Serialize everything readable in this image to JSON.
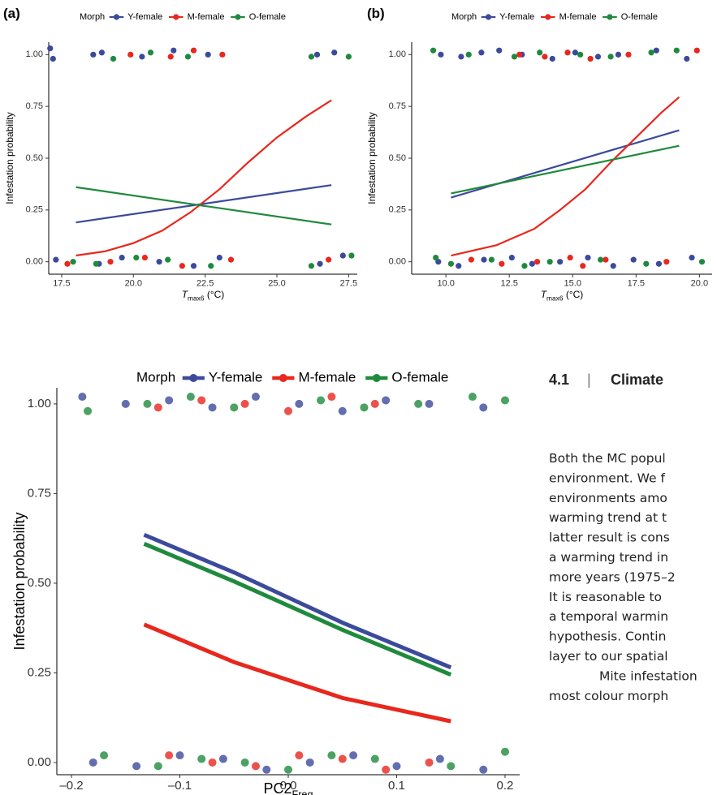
{
  "chart_data": [
    {
      "type": "scatter",
      "panel_label": "(a)",
      "legend_title": "Morph",
      "xlabel": {
        "text": "T",
        "sub": "max6",
        "suffix": " (°C)"
      },
      "ylabel": "Infestation probability",
      "xlim": [
        17.05,
        27.8
      ],
      "ylim": [
        -0.06,
        1.06
      ],
      "grid": false,
      "xticks": [
        17.5,
        {
          "value": 20,
          "label": "20.0"
        },
        22.5,
        {
          "value": 25,
          "label": "25.0"
        },
        27.5
      ],
      "yticks": [
        {
          "value": 0,
          "label": "0.00"
        },
        {
          "value": 0.25,
          "label": "0.25"
        },
        {
          "value": 0.5,
          "label": "0.50"
        },
        {
          "value": 0.75,
          "label": "0.75"
        },
        {
          "value": 1,
          "label": "1.00"
        }
      ],
      "series": [
        {
          "name": "Y-female",
          "color": "#3b4a9b",
          "points": {
            "x": [
              17.1,
              17.2,
              18.6,
              18.9,
              20.3,
              21.4,
              22.6,
              26.4,
              27.0,
              17.3,
              18.8,
              19.6,
              20.9,
              22.1,
              23.0,
              26.5,
              27.3
            ],
            "y": [
              1.03,
              0.98,
              1.0,
              1.01,
              0.99,
              1.02,
              1.0,
              1.0,
              1.01,
              0.01,
              -0.01,
              0.02,
              0.0,
              -0.02,
              0.02,
              -0.01,
              0.03
            ]
          },
          "fit": {
            "x": [
              18,
              26.9
            ],
            "y": [
              0.19,
              0.37
            ]
          }
        },
        {
          "name": "M-female",
          "color": "#e8271d",
          "points": {
            "x": [
              19.9,
              21.3,
              22.1,
              23.1,
              17.7,
              19.2,
              20.4,
              21.7,
              23.4,
              26.8
            ],
            "y": [
              1.0,
              0.99,
              1.02,
              1.0,
              -0.01,
              0.0,
              0.02,
              -0.02,
              0.01,
              0.01
            ]
          },
          "fit": {
            "x": [
              18,
              19,
              20,
              21,
              22,
              23,
              24,
              25,
              26,
              26.9
            ],
            "y": [
              0.03,
              0.05,
              0.09,
              0.15,
              0.24,
              0.35,
              0.48,
              0.6,
              0.7,
              0.78
            ]
          }
        },
        {
          "name": "O-female",
          "color": "#1f8a3d",
          "points": {
            "x": [
              19.3,
              20.6,
              21.9,
              26.2,
              27.5,
              17.9,
              18.7,
              20.1,
              21.2,
              22.7,
              26.2,
              27.6
            ],
            "y": [
              0.98,
              1.01,
              0.99,
              0.99,
              0.99,
              0.0,
              -0.01,
              0.02,
              0.01,
              -0.02,
              -0.02,
              0.03
            ]
          },
          "fit": {
            "x": [
              18,
              26.9
            ],
            "y": [
              0.36,
              0.18
            ]
          }
        }
      ]
    },
    {
      "type": "scatter",
      "panel_label": "(b)",
      "legend_title": "Morph",
      "xlabel": {
        "text": "T",
        "sub": "max6",
        "suffix": " (°C)"
      },
      "ylabel": "Infestation probability",
      "xlim": [
        8.65,
        20.5
      ],
      "ylim": [
        -0.06,
        1.06
      ],
      "grid": false,
      "xticks": [
        {
          "value": 10,
          "label": "10.0"
        },
        12.5,
        {
          "value": 15,
          "label": "15.0"
        },
        17.5,
        {
          "value": 20,
          "label": "20.0"
        }
      ],
      "yticks": [
        {
          "value": 0,
          "label": "0.00"
        },
        {
          "value": 0.25,
          "label": "0.25"
        },
        {
          "value": 0.5,
          "label": "0.50"
        },
        {
          "value": 0.75,
          "label": "0.75"
        },
        {
          "value": 1,
          "label": "1.00"
        }
      ],
      "series": [
        {
          "name": "Y-female",
          "color": "#3b4a9b",
          "points": {
            "x": [
              9.8,
              10.6,
              11.4,
              12.1,
              13.0,
              14.2,
              15.1,
              16.0,
              16.8,
              18.3,
              19.5,
              9.7,
              10.5,
              11.5,
              12.6,
              13.4,
              14.5,
              15.6,
              16.6,
              17.4,
              18.4,
              19.7
            ],
            "y": [
              1.0,
              0.99,
              1.01,
              1.02,
              1.0,
              0.98,
              1.01,
              0.99,
              1.0,
              1.02,
              0.98,
              0.0,
              -0.02,
              0.01,
              0.02,
              -0.01,
              0.0,
              0.02,
              -0.02,
              0.01,
              -0.01,
              0.02
            ]
          },
          "fit": {
            "x": [
              10.2,
              19.2
            ],
            "y": [
              0.31,
              0.635
            ]
          }
        },
        {
          "name": "M-female",
          "color": "#e8271d",
          "points": {
            "x": [
              12.9,
              13.9,
              14.8,
              15.7,
              17.2,
              19.9,
              11.0,
              12.2,
              13.6,
              14.9,
              15.4,
              16.3,
              18.7
            ],
            "y": [
              1.0,
              0.99,
              1.01,
              0.98,
              1.0,
              1.02,
              0.01,
              -0.01,
              0.0,
              0.02,
              -0.02,
              0.01,
              0.0
            ]
          },
          "fit": {
            "x": [
              10.2,
              12,
              13.5,
              14.5,
              15.5,
              16.5,
              17.5,
              18.5,
              19.2
            ],
            "y": [
              0.03,
              0.08,
              0.16,
              0.25,
              0.35,
              0.48,
              0.6,
              0.72,
              0.795
            ]
          }
        },
        {
          "name": "O-female",
          "color": "#1f8a3d",
          "points": {
            "x": [
              9.5,
              10.9,
              12.7,
              13.7,
              15.3,
              16.5,
              18.1,
              19.1,
              9.6,
              10.2,
              11.8,
              13.1,
              14.1,
              16.1,
              17.9,
              20.1
            ],
            "y": [
              1.02,
              1.0,
              0.99,
              1.01,
              1.0,
              0.99,
              1.01,
              1.02,
              0.02,
              -0.01,
              0.01,
              -0.02,
              0.0,
              0.01,
              -0.01,
              0.0
            ]
          },
          "fit": {
            "x": [
              10.2,
              19.2
            ],
            "y": [
              0.33,
              0.56
            ]
          }
        }
      ]
    },
    {
      "type": "scatter",
      "legend_title": "Morph",
      "xlabel": {
        "text": "PC2",
        "sub": "Freq",
        "suffix": ""
      },
      "ylabel": "Infestation probability",
      "xlim": [
        -0.2135,
        0.2135
      ],
      "ylim": [
        -0.034,
        1.045
      ],
      "grid": false,
      "xticks": [
        {
          "value": -0.2,
          "label": "–0.2"
        },
        {
          "value": -0.1,
          "label": "–0.1"
        },
        {
          "value": 0,
          "label": "0.0"
        },
        0.1,
        0.2
      ],
      "yticks": [
        {
          "value": 0,
          "label": "0.00"
        },
        {
          "value": 0.25,
          "label": "0.25"
        },
        {
          "value": 0.5,
          "label": "0.50"
        },
        {
          "value": 0.75,
          "label": "0.75"
        },
        {
          "value": 1,
          "label": "1.00"
        }
      ],
      "series": [
        {
          "name": "Y-female",
          "color": "#3b4a9b",
          "points": {
            "x": [
              -0.19,
              -0.15,
              -0.11,
              -0.07,
              -0.03,
              0.01,
              0.05,
              0.09,
              0.13,
              0.18,
              -0.18,
              -0.14,
              -0.1,
              -0.06,
              -0.02,
              0.02,
              0.06,
              0.1,
              0.14,
              0.18
            ],
            "y": [
              1.02,
              1.0,
              1.01,
              0.99,
              1.02,
              1.0,
              0.98,
              1.01,
              1.0,
              0.99,
              0.0,
              -0.01,
              0.02,
              0.01,
              -0.02,
              0.0,
              0.02,
              -0.01,
              0.01,
              -0.02
            ]
          },
          "fit": {
            "x": [
              -0.133,
              -0.05,
              0.05,
              0.15
            ],
            "y": [
              0.635,
              0.53,
              0.39,
              0.265
            ]
          }
        },
        {
          "name": "M-female",
          "color": "#e8271d",
          "points": {
            "x": [
              -0.12,
              -0.08,
              -0.04,
              0.0,
              0.04,
              0.08,
              -0.11,
              -0.07,
              -0.03,
              0.01,
              0.05,
              0.09,
              0.13
            ],
            "y": [
              0.99,
              1.01,
              1.0,
              0.98,
              1.02,
              1.0,
              0.02,
              0.0,
              -0.01,
              0.02,
              0.01,
              -0.02,
              0.0
            ]
          },
          "fit": {
            "x": [
              -0.133,
              -0.05,
              0.05,
              0.15
            ],
            "y": [
              0.385,
              0.28,
              0.18,
              0.115
            ]
          }
        },
        {
          "name": "O-female",
          "color": "#1f8a3d",
          "points": {
            "x": [
              -0.185,
              -0.13,
              -0.09,
              -0.05,
              0.03,
              0.07,
              0.12,
              0.17,
              0.2,
              -0.17,
              -0.12,
              -0.08,
              -0.04,
              0.0,
              0.04,
              0.08,
              0.15,
              0.2
            ],
            "y": [
              0.98,
              1.0,
              1.02,
              0.99,
              1.01,
              0.99,
              1.0,
              1.02,
              1.01,
              0.02,
              -0.01,
              0.01,
              0.0,
              -0.02,
              0.02,
              0.01,
              -0.01,
              0.03
            ]
          },
          "fit": {
            "x": [
              -0.133,
              -0.05,
              0.05,
              0.15
            ],
            "y": [
              0.61,
              0.505,
              0.37,
              0.245
            ]
          }
        }
      ]
    }
  ],
  "section": {
    "number": "4.1",
    "separator": "|",
    "title": "Climate",
    "paragraphs": [
      [
        "Both the MC popul",
        "environment. We f",
        "environments amo",
        "warming trend at t",
        "latter result is cons",
        "a warming trend in",
        "more years (1975–2",
        "It is reasonable to",
        "a temporal warmin",
        "hypothesis. Contin",
        "layer to our spatial"
      ],
      [
        "Mite infestation",
        "most colour morph"
      ]
    ]
  }
}
